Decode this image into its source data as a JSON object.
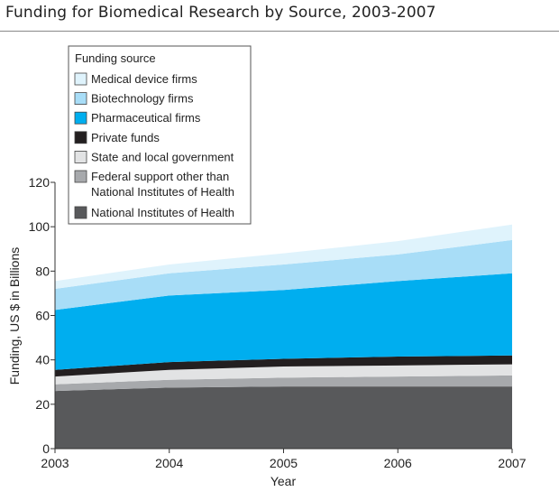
{
  "chart_data": {
    "type": "area",
    "stacked": true,
    "title": "Funding for Biomedical Research by Source, 2003-2007",
    "xlabel": "Year",
    "ylabel": "Funding, US $ in Billions",
    "x": [
      2003,
      2004,
      2005,
      2006,
      2007
    ],
    "xticks": [
      "2003",
      "2004",
      "2005",
      "2006",
      "2007"
    ],
    "ylim": [
      0,
      120
    ],
    "yticks": [
      "0",
      "20",
      "40",
      "60",
      "80",
      "100",
      "120"
    ],
    "grid": false,
    "legend_title": "Funding source",
    "legend_position": "top-left",
    "legend_order": [
      6,
      5,
      4,
      3,
      2,
      1,
      0
    ],
    "series": [
      {
        "name": "National Institutes of Health",
        "color": "#58595b",
        "values": [
          26,
          27.5,
          28,
          28,
          28
        ]
      },
      {
        "name": "Federal support other than\nNational Institutes of Health",
        "color": "#a7a9ac",
        "values": [
          3,
          3.5,
          4,
          4.5,
          5
        ]
      },
      {
        "name": "State and local government",
        "color": "#e2e3e4",
        "values": [
          3.5,
          4.5,
          5,
          5,
          5
        ]
      },
      {
        "name": "Private funds",
        "color": "#231f20",
        "values": [
          3,
          3.5,
          3.5,
          4,
          4
        ]
      },
      {
        "name": "Pharmaceutical firms",
        "color": "#00aeef",
        "values": [
          27,
          30,
          31,
          34,
          37
        ]
      },
      {
        "name": "Biotechnology firms",
        "color": "#a8ddf7",
        "values": [
          9.5,
          10,
          11.5,
          12,
          15
        ]
      },
      {
        "name": "Medical device firms",
        "color": "#dff3fc",
        "values": [
          3.5,
          4,
          5,
          6,
          7
        ]
      }
    ]
  }
}
